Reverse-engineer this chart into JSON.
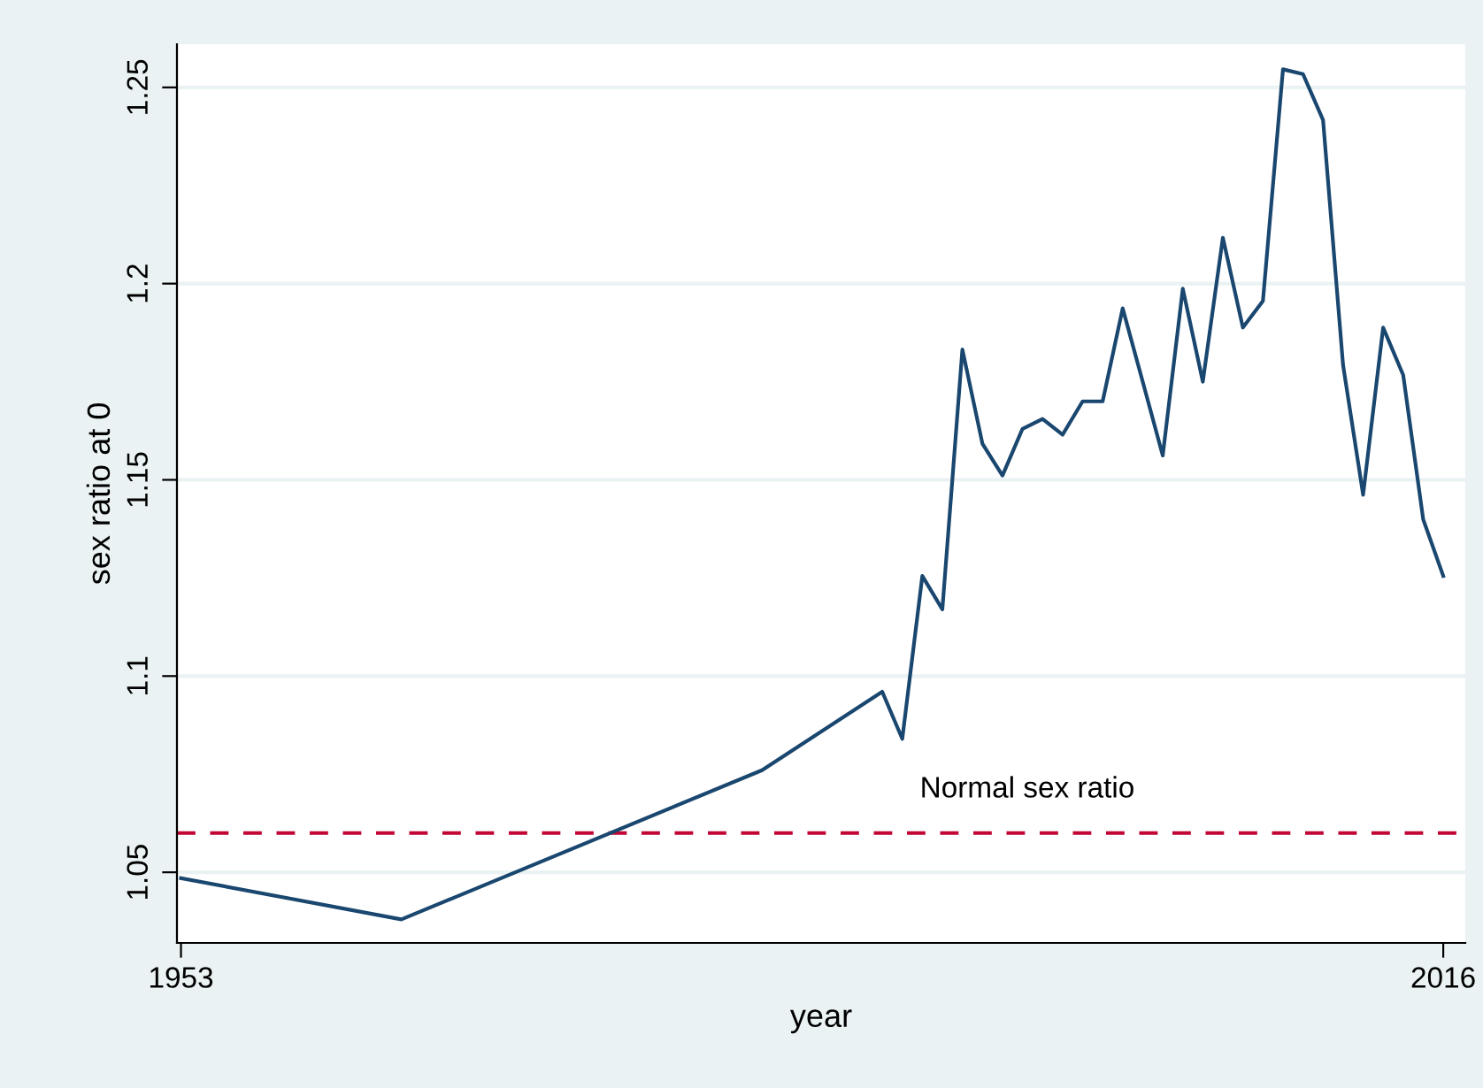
{
  "chart_data": {
    "type": "line",
    "xlabel": "year",
    "ylabel": "sex ratio at 0",
    "x": [
      1953,
      1964,
      1982,
      1988,
      1989,
      1990,
      1991,
      1992,
      1993,
      1994,
      1995,
      1996,
      1997,
      1998,
      1999,
      2000,
      2001,
      2002,
      2003,
      2004,
      2005,
      2006,
      2007,
      2008,
      2009,
      2010,
      2011,
      2012,
      2013,
      2014,
      2015,
      2016
    ],
    "series": [
      {
        "color": "#1a476f",
        "values": [
          1.0485,
          1.038,
          1.076,
          1.096,
          1.084,
          1.1255,
          1.117,
          1.1832,
          1.1592,
          1.1511,
          1.163,
          1.1655,
          1.1615,
          1.17,
          1.17,
          1.1937,
          1.175,
          1.1562,
          1.1987,
          1.175,
          1.2117,
          1.1888,
          1.1956,
          1.2546,
          1.2534,
          1.2417,
          1.1792,
          1.1462,
          1.1888,
          1.1767,
          1.1399,
          1.1255
        ]
      }
    ],
    "xlim": [
      1952.8,
      2017.1
    ],
    "xticks": [
      1953,
      2016
    ],
    "ylim": [
      1.032,
      1.261
    ],
    "yticks": [
      1.05,
      {
        "value": 1.1,
        "label": "1.1"
      },
      1.15,
      {
        "value": 1.2,
        "label": "1.2"
      },
      1.25
    ],
    "grid": "y",
    "line_style": "solid",
    "marker": "none",
    "ref_lines": [
      {
        "axis": "y",
        "value": 1.06,
        "label": "Normal sex ratio",
        "color": "#c10534",
        "line_style": "dashed"
      }
    ]
  }
}
